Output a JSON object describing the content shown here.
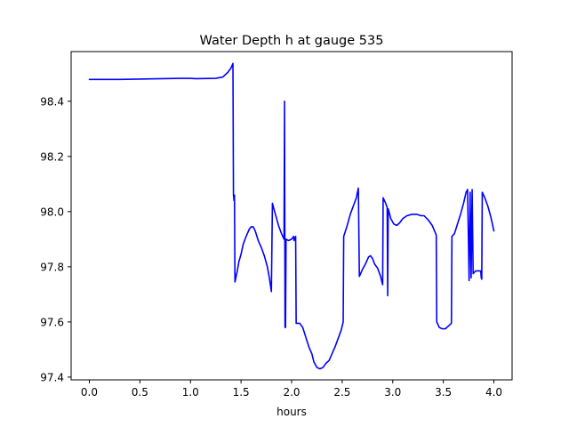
{
  "chart_data": {
    "type": "line",
    "title": "Water Depth h at gauge 535",
    "xlabel": "hours",
    "ylabel": "",
    "xlim": [
      -0.18,
      4.18
    ],
    "ylim": [
      97.39,
      98.58
    ],
    "xticks": [
      0.0,
      0.5,
      1.0,
      1.5,
      2.0,
      2.5,
      3.0,
      3.5,
      4.0
    ],
    "xtick_labels": [
      "0.0",
      "0.5",
      "1.0",
      "1.5",
      "2.0",
      "2.5",
      "3.0",
      "3.5",
      "4.0"
    ],
    "yticks": [
      97.4,
      97.6,
      97.8,
      98.0,
      98.2,
      98.4
    ],
    "ytick_labels": [
      "97.4",
      "97.6",
      "97.8",
      "98.0",
      "98.2",
      "98.4"
    ],
    "grid": false,
    "legend": "none",
    "series": [
      {
        "color": "#0000ff",
        "points": [
          [
            0.0,
            98.479
          ],
          [
            0.3,
            98.479
          ],
          [
            0.6,
            98.481
          ],
          [
            0.9,
            98.483
          ],
          [
            1.0,
            98.483
          ],
          [
            1.05,
            98.482
          ],
          [
            1.25,
            98.483
          ],
          [
            1.32,
            98.488
          ],
          [
            1.37,
            98.505
          ],
          [
            1.4,
            98.52
          ],
          [
            1.42,
            98.537
          ],
          [
            1.425,
            98.06
          ],
          [
            1.43,
            98.04
          ],
          [
            1.435,
            98.06
          ],
          [
            1.44,
            97.745
          ],
          [
            1.46,
            97.78
          ],
          [
            1.48,
            97.82
          ],
          [
            1.5,
            97.845
          ],
          [
            1.52,
            97.88
          ],
          [
            1.55,
            97.91
          ],
          [
            1.58,
            97.935
          ],
          [
            1.6,
            97.945
          ],
          [
            1.62,
            97.945
          ],
          [
            1.64,
            97.93
          ],
          [
            1.67,
            97.895
          ],
          [
            1.7,
            97.87
          ],
          [
            1.73,
            97.84
          ],
          [
            1.76,
            97.8
          ],
          [
            1.78,
            97.76
          ],
          [
            1.8,
            97.71
          ],
          [
            1.81,
            98.03
          ],
          [
            1.84,
            97.99
          ],
          [
            1.87,
            97.95
          ],
          [
            1.9,
            97.92
          ],
          [
            1.925,
            97.9
          ],
          [
            1.93,
            98.4
          ],
          [
            1.935,
            97.58
          ],
          [
            1.94,
            97.58
          ],
          [
            1.945,
            97.9
          ],
          [
            1.97,
            97.895
          ],
          [
            2.0,
            97.9
          ],
          [
            2.02,
            97.91
          ],
          [
            2.025,
            97.895
          ],
          [
            2.04,
            97.91
          ],
          [
            2.045,
            97.595
          ],
          [
            2.08,
            97.595
          ],
          [
            2.11,
            97.58
          ],
          [
            2.14,
            97.545
          ],
          [
            2.17,
            97.51
          ],
          [
            2.2,
            97.485
          ],
          [
            2.22,
            97.455
          ],
          [
            2.25,
            97.435
          ],
          [
            2.28,
            97.43
          ],
          [
            2.31,
            97.435
          ],
          [
            2.34,
            97.45
          ],
          [
            2.37,
            97.46
          ],
          [
            2.4,
            97.485
          ],
          [
            2.43,
            97.51
          ],
          [
            2.46,
            97.54
          ],
          [
            2.49,
            97.57
          ],
          [
            2.51,
            97.6
          ],
          [
            2.515,
            97.91
          ],
          [
            2.55,
            97.95
          ],
          [
            2.58,
            97.99
          ],
          [
            2.61,
            98.02
          ],
          [
            2.64,
            98.05
          ],
          [
            2.66,
            98.085
          ],
          [
            2.67,
            97.765
          ],
          [
            2.7,
            97.79
          ],
          [
            2.73,
            97.81
          ],
          [
            2.76,
            97.835
          ],
          [
            2.78,
            97.84
          ],
          [
            2.8,
            97.83
          ],
          [
            2.82,
            97.81
          ],
          [
            2.85,
            97.795
          ],
          [
            2.88,
            97.765
          ],
          [
            2.9,
            97.735
          ],
          [
            2.905,
            98.05
          ],
          [
            2.93,
            98.03
          ],
          [
            2.945,
            98.015
          ],
          [
            2.95,
            97.695
          ],
          [
            2.955,
            98.01
          ],
          [
            2.98,
            97.975
          ],
          [
            3.01,
            97.955
          ],
          [
            3.04,
            97.95
          ],
          [
            3.07,
            97.96
          ],
          [
            3.1,
            97.975
          ],
          [
            3.14,
            97.985
          ],
          [
            3.19,
            97.99
          ],
          [
            3.24,
            97.99
          ],
          [
            3.28,
            97.985
          ],
          [
            3.31,
            97.985
          ],
          [
            3.35,
            97.97
          ],
          [
            3.39,
            97.95
          ],
          [
            3.43,
            97.915
          ],
          [
            3.435,
            97.6
          ],
          [
            3.46,
            97.58
          ],
          [
            3.49,
            97.575
          ],
          [
            3.52,
            97.575
          ],
          [
            3.55,
            97.585
          ],
          [
            3.58,
            97.595
          ],
          [
            3.585,
            97.91
          ],
          [
            3.61,
            97.92
          ],
          [
            3.64,
            97.955
          ],
          [
            3.67,
            97.99
          ],
          [
            3.7,
            98.03
          ],
          [
            3.725,
            98.07
          ],
          [
            3.74,
            98.08
          ],
          [
            3.755,
            97.75
          ],
          [
            3.765,
            98.07
          ],
          [
            3.775,
            97.76
          ],
          [
            3.785,
            98.08
          ],
          [
            3.795,
            97.775
          ],
          [
            3.82,
            97.785
          ],
          [
            3.85,
            97.785
          ],
          [
            3.87,
            97.785
          ],
          [
            3.875,
            97.76
          ],
          [
            3.88,
            97.755
          ],
          [
            3.885,
            98.07
          ],
          [
            3.91,
            98.05
          ],
          [
            3.94,
            98.02
          ],
          [
            3.97,
            97.98
          ],
          [
            4.0,
            97.93
          ]
        ]
      }
    ]
  }
}
